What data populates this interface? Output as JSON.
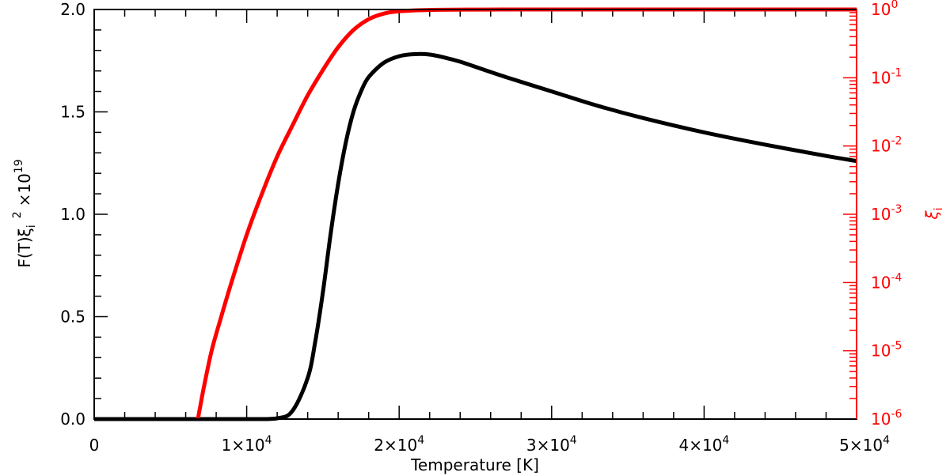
{
  "chart_data": {
    "type": "line",
    "xlabel": "Temperature [K]",
    "ylabel_left": {
      "base": "F(T)ξ",
      "sub": "i",
      "sup": "2",
      "mult": "×10",
      "exp": "19"
    },
    "ylabel_right": {
      "base": "ξ",
      "sub": "i"
    },
    "xlim": [
      0,
      50000
    ],
    "ylim_left": [
      0,
      2.0
    ],
    "ylim_right_log10": [
      -6,
      0
    ],
    "yscale_right": "log",
    "grid": false,
    "colors": {
      "left_series": "#000000",
      "right_series": "#ff0000",
      "right_axis": "#ff0000"
    },
    "x_ticks": [
      {
        "value": 0,
        "mant": "0",
        "exp": ""
      },
      {
        "value": 10000,
        "mant": "1×10",
        "exp": "4"
      },
      {
        "value": 20000,
        "mant": "2×10",
        "exp": "4"
      },
      {
        "value": 30000,
        "mant": "3×10",
        "exp": "4"
      },
      {
        "value": 40000,
        "mant": "4×10",
        "exp": "4"
      },
      {
        "value": 50000,
        "mant": "5×10",
        "exp": "4"
      }
    ],
    "y_left_ticks": [
      {
        "value": 0.0,
        "label": "0.0"
      },
      {
        "value": 0.5,
        "label": "0.5"
      },
      {
        "value": 1.0,
        "label": "1.0"
      },
      {
        "value": 1.5,
        "label": "1.5"
      },
      {
        "value": 2.0,
        "label": "2.0"
      }
    ],
    "y_right_ticks": [
      {
        "value": 1e-06,
        "mant": "10",
        "exp": "-6"
      },
      {
        "value": 1e-05,
        "mant": "10",
        "exp": "-5"
      },
      {
        "value": 0.0001,
        "mant": "10",
        "exp": "-4"
      },
      {
        "value": 0.001,
        "mant": "10",
        "exp": "-3"
      },
      {
        "value": 0.01,
        "mant": "10",
        "exp": "-2"
      },
      {
        "value": 0.1,
        "mant": "10",
        "exp": "-1"
      },
      {
        "value": 1,
        "mant": "10",
        "exp": "0"
      }
    ],
    "series": [
      {
        "axis": "left",
        "x": [
          0,
          5000,
          10000,
          12000,
          13000,
          14000,
          14500,
          15000,
          15500,
          16000,
          16500,
          17000,
          17500,
          18000,
          19000,
          20000,
          21000,
          22000,
          23000,
          24000,
          25000,
          27000,
          30000,
          33000,
          36000,
          40000,
          44000,
          48000,
          50000
        ],
        "y": [
          0,
          0,
          0,
          0.004,
          0.04,
          0.2,
          0.38,
          0.62,
          0.9,
          1.15,
          1.35,
          1.5,
          1.6,
          1.67,
          1.74,
          1.772,
          1.782,
          1.78,
          1.765,
          1.745,
          1.72,
          1.67,
          1.6,
          1.53,
          1.47,
          1.4,
          1.34,
          1.285,
          1.26
        ]
      },
      {
        "axis": "right",
        "x": [
          6800,
          7200,
          7700,
          8300,
          9000,
          10000,
          11000,
          12000,
          13000,
          14000,
          15000,
          16000,
          17000,
          18000,
          19000,
          20000,
          22000,
          25000,
          30000,
          40000,
          50000
        ],
        "y": [
          1e-06,
          3e-06,
          1e-05,
          3e-05,
          0.0001,
          0.0005,
          0.002,
          0.007,
          0.02,
          0.055,
          0.13,
          0.28,
          0.5,
          0.72,
          0.87,
          0.94,
          0.985,
          0.997,
          1,
          1,
          1
        ]
      }
    ]
  }
}
